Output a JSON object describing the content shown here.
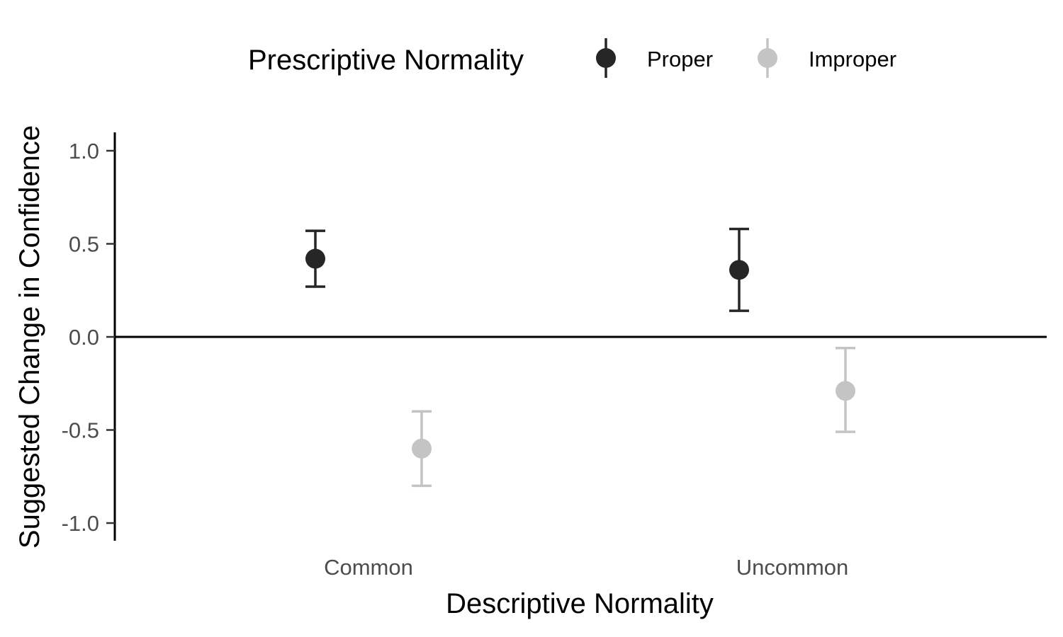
{
  "chart_data": {
    "type": "scatter",
    "subtype": "point-with-error-bars",
    "title": "",
    "xlabel": "Descriptive Normality",
    "ylabel": "Suggested Change in Confidence",
    "categories": [
      "Common",
      "Uncommon"
    ],
    "ylim": [
      -1.1,
      1.1
    ],
    "yticks": [
      1.0,
      0.5,
      0.0,
      -0.5,
      -1.0
    ],
    "ytick_labels": [
      "1.0",
      "0.5",
      "0.0",
      "-0.5",
      "-1.0"
    ],
    "reference_line": 0,
    "grid": false,
    "legend": {
      "title": "Prescriptive Normality",
      "placement": "top"
    },
    "series": [
      {
        "name": "Proper",
        "color": "#262626",
        "values": [
          0.42,
          0.36
        ],
        "lower": [
          0.27,
          0.14
        ],
        "upper": [
          0.57,
          0.58
        ]
      },
      {
        "name": "Improper",
        "color": "#c4c4c4",
        "values": [
          -0.6,
          -0.29
        ],
        "lower": [
          -0.8,
          -0.51
        ],
        "upper": [
          -0.4,
          -0.06
        ]
      }
    ]
  }
}
